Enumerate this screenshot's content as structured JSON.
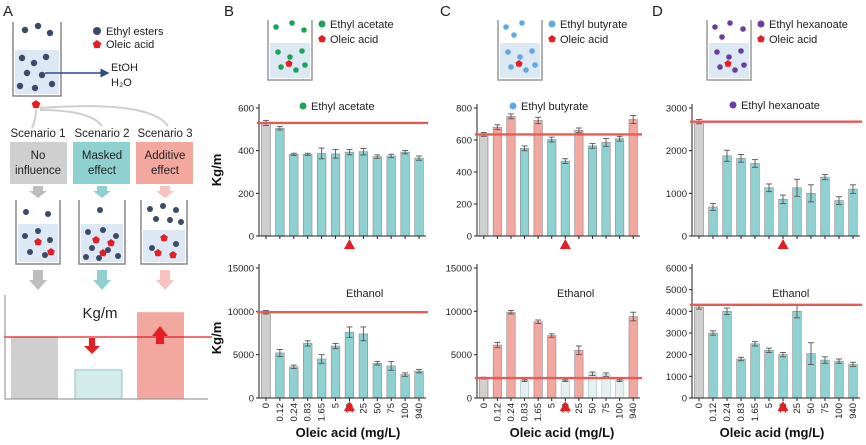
{
  "figure": {
    "panel_letters": [
      "A",
      "B",
      "C",
      "D"
    ],
    "x_axis_label": "Oleic acid (mg/L)",
    "y_axis_label": "Kg/m",
    "categories": [
      "0",
      "0.12",
      "0.24",
      "0.83",
      "1.65",
      "5",
      "10",
      "25",
      "50",
      "75",
      "100",
      "940"
    ],
    "marker_category": "10"
  },
  "panel_a": {
    "legend_esters": "Ethyl esters",
    "legend_oleic": "Oleic acid",
    "etoh_label": "EtOH",
    "h2o_label": "H₂O",
    "scenarios": [
      {
        "title": "Scenario 1",
        "box_line1": "No",
        "box_line2": "influence"
      },
      {
        "title": "Scenario 2",
        "box_line1": "Masked",
        "box_line2": "effect"
      },
      {
        "title": "Scenario 3",
        "box_line1": "Additive",
        "box_line2": "effect"
      }
    ],
    "result_label": "Kg/m",
    "result_bar_values": [
      1.0,
      0.47,
      1.4
    ]
  },
  "colors": {
    "teal": "#8fd0d0",
    "salmon": "#f2a79f",
    "gray": "#cfcfcf",
    "light": "#e6f0f0",
    "ref_line": "#e85a55",
    "red_marker": "#e31e24",
    "green": "#1aa35a",
    "blue": "#5fa8e0",
    "purple": "#6a3ea1",
    "navy": "#3b4a66"
  },
  "chart_data": [
    {
      "panel": "B",
      "position": "top",
      "type": "bar",
      "legend": "Ethyl acetate",
      "legend_color": "green",
      "beaker_labels": [
        "Ethyl acetate",
        "Oleic acid"
      ],
      "ylim": [
        0,
        600
      ],
      "yticks": [
        0,
        200,
        400,
        600
      ],
      "ref": 530,
      "values": [
        530,
        505,
        383,
        383,
        387,
        385,
        393,
        395,
        372,
        375,
        393,
        365
      ],
      "errors": [
        12,
        8,
        5,
        5,
        25,
        20,
        12,
        15,
        8,
        8,
        8,
        10
      ],
      "colors": [
        "gray",
        "teal",
        "teal",
        "teal",
        "teal",
        "teal",
        "teal",
        "teal",
        "teal",
        "teal",
        "teal",
        "teal"
      ]
    },
    {
      "panel": "B",
      "position": "bottom",
      "type": "bar",
      "legend": "Ethanol",
      "ylim": [
        0,
        15000
      ],
      "yticks": [
        0,
        5000,
        10000,
        15000
      ],
      "ref": 9900,
      "values": [
        9900,
        5200,
        3600,
        6300,
        4500,
        6000,
        7600,
        7400,
        4000,
        3700,
        2700,
        3100
      ],
      "errors": [
        200,
        400,
        200,
        300,
        500,
        300,
        600,
        800,
        200,
        500,
        200,
        200
      ],
      "colors": [
        "gray",
        "teal",
        "teal",
        "teal",
        "teal",
        "teal",
        "teal",
        "teal",
        "teal",
        "teal",
        "teal",
        "teal"
      ]
    },
    {
      "panel": "C",
      "position": "top",
      "type": "bar",
      "legend": "Ethyl butyrate",
      "legend_color": "blue",
      "beaker_labels": [
        "Ethyl butyrate",
        "Oleic acid"
      ],
      "ylim": [
        0,
        800
      ],
      "yticks": [
        0,
        200,
        400,
        600,
        800
      ],
      "ref": 635,
      "values": [
        635,
        680,
        748,
        548,
        722,
        603,
        468,
        660,
        563,
        585,
        608,
        728
      ],
      "errors": [
        12,
        15,
        15,
        15,
        20,
        15,
        15,
        15,
        15,
        25,
        15,
        25
      ],
      "colors": [
        "gray",
        "salmon",
        "salmon",
        "teal",
        "salmon",
        "teal",
        "teal",
        "salmon",
        "teal",
        "teal",
        "teal",
        "salmon"
      ]
    },
    {
      "panel": "C",
      "position": "bottom",
      "type": "bar",
      "legend": "Ethanol",
      "ylim": [
        0,
        15000
      ],
      "yticks": [
        0,
        5000,
        10000,
        15000
      ],
      "ref": 2300,
      "values": [
        2300,
        6100,
        9900,
        2000,
        8800,
        7200,
        2000,
        5500,
        2800,
        2700,
        2000,
        9400
      ],
      "errors": [
        100,
        300,
        200,
        100,
        200,
        200,
        100,
        500,
        200,
        200,
        100,
        500
      ],
      "colors": [
        "gray",
        "salmon",
        "salmon",
        "light",
        "salmon",
        "salmon",
        "light",
        "salmon",
        "light",
        "light",
        "light",
        "salmon"
      ]
    },
    {
      "panel": "D",
      "position": "top",
      "type": "bar",
      "legend": "Ethyl hexanoate",
      "legend_color": "purple",
      "beaker_labels": [
        "Ethyl hexanoate",
        "Oleic acid"
      ],
      "ylim": [
        0,
        3000
      ],
      "yticks": [
        0,
        1000,
        2000,
        3000
      ],
      "ref": 2680,
      "values": [
        2680,
        680,
        1880,
        1820,
        1700,
        1130,
        860,
        1130,
        1000,
        1380,
        830,
        1100
      ],
      "errors": [
        50,
        80,
        130,
        90,
        90,
        90,
        100,
        200,
        200,
        60,
        90,
        100
      ],
      "colors": [
        "gray",
        "teal",
        "teal",
        "teal",
        "teal",
        "teal",
        "teal",
        "teal",
        "teal",
        "teal",
        "teal",
        "teal"
      ]
    },
    {
      "panel": "D",
      "position": "bottom",
      "type": "bar",
      "legend": "Ethanol",
      "ylim": [
        0,
        6000
      ],
      "yticks": [
        0,
        1000,
        2000,
        3000,
        4000,
        5000,
        6000
      ],
      "ref": 4300,
      "values": [
        4200,
        3000,
        4000,
        1800,
        2500,
        2200,
        2000,
        4000,
        2050,
        1750,
        1700,
        1550
      ],
      "errors": [
        100,
        100,
        150,
        80,
        100,
        100,
        100,
        300,
        500,
        150,
        100,
        100
      ],
      "colors": [
        "gray",
        "teal",
        "teal",
        "teal",
        "teal",
        "teal",
        "teal",
        "teal",
        "teal",
        "teal",
        "teal",
        "teal"
      ]
    }
  ]
}
